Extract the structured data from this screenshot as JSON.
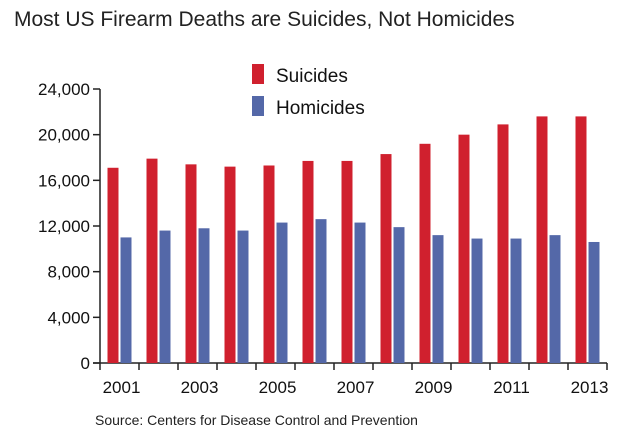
{
  "chart_data": {
    "type": "bar",
    "title": "Most US Firearm Deaths are Suicides, Not Homicides",
    "source": "Source: Centers for Disease Control and Prevention",
    "xlabel": "",
    "ylabel": "",
    "categories": [
      "2001",
      "2002",
      "2003",
      "2004",
      "2005",
      "2006",
      "2007",
      "2008",
      "2009",
      "2010",
      "2011",
      "2012",
      "2013"
    ],
    "x_tick_labels": [
      "2001",
      "",
      "2003",
      "",
      "2005",
      "",
      "2007",
      "",
      "2009",
      "",
      "2011",
      "",
      "2013"
    ],
    "ylim": [
      0,
      24000
    ],
    "y_ticks": [
      0,
      4000,
      8000,
      12000,
      16000,
      20000,
      24000
    ],
    "y_tick_labels": [
      "0",
      "4,000",
      "8,000",
      "12,000",
      "16,000",
      "20,000",
      "24,000"
    ],
    "grid": false,
    "legend_position": "top-center",
    "series": [
      {
        "name": "Suicides",
        "color": "#d0202e",
        "values": [
          17100,
          17900,
          17400,
          17200,
          17300,
          17700,
          17700,
          18300,
          19200,
          20000,
          20900,
          21600,
          21600
        ]
      },
      {
        "name": "Homicides",
        "color": "#5468a8",
        "values": [
          11000,
          11600,
          11800,
          11600,
          12300,
          12600,
          12300,
          11900,
          11200,
          10900,
          10900,
          11200,
          10600
        ]
      }
    ]
  }
}
